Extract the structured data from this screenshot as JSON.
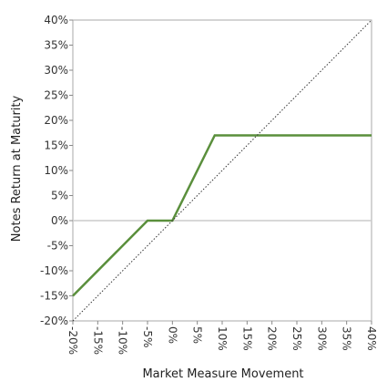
{
  "chart_data": {
    "type": "line",
    "xlabel": "Market Measure Movement",
    "ylabel": "Notes Return at Maturity",
    "xlim": [
      -20,
      40
    ],
    "ylim": [
      -20,
      40
    ],
    "x_ticks": [
      "-20%",
      "-15%",
      "-10%",
      "-5%",
      "0%",
      "5%",
      "10%",
      "15%",
      "20%",
      "25%",
      "30%",
      "35%",
      "40%"
    ],
    "y_ticks": [
      "40%",
      "35%",
      "30%",
      "25%",
      "20%",
      "15%",
      "10%",
      "5%",
      "0%",
      "-5%",
      "-10%",
      "-15%",
      "-20%"
    ],
    "series": [
      {
        "color": "#5a8f3c",
        "points": [
          [
            -20,
            -15
          ],
          [
            -5,
            0
          ],
          [
            0,
            0
          ],
          [
            8.5,
            17
          ],
          [
            40,
            17
          ]
        ]
      },
      {
        "color": "#333333",
        "style": "dotted",
        "points": [
          [
            -20,
            -20
          ],
          [
            40,
            40
          ]
        ]
      }
    ],
    "zero_line_color": "#cccccc",
    "grid": false
  }
}
